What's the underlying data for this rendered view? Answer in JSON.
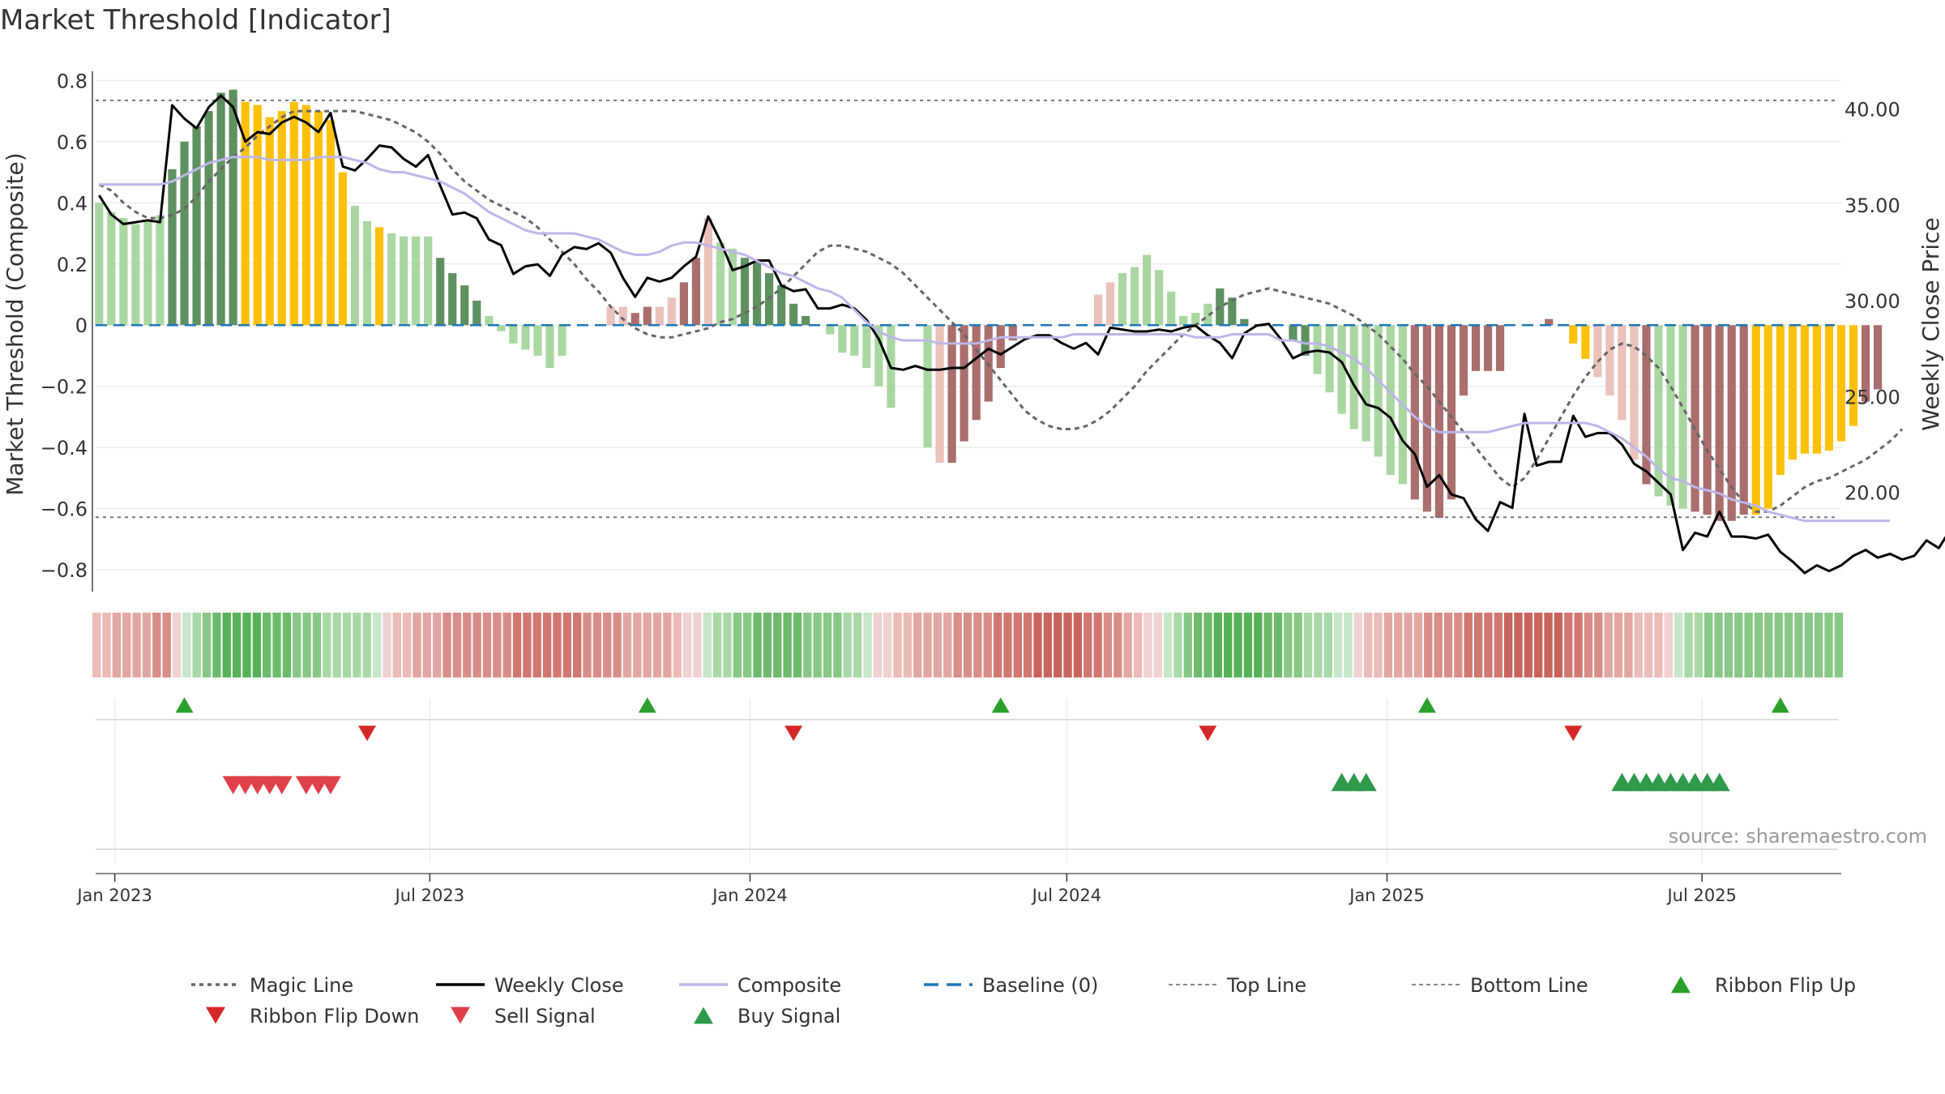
{
  "chart_data": {
    "type": "bar",
    "title": "Market Threshold [Indicator]",
    "ylabel": "Market Threshold (Composite)",
    "y2label": "Weekly Close Price",
    "ylim": [
      -0.85,
      0.83
    ],
    "y2lim": [
      15.17,
      41.97
    ],
    "yticks": [
      0.8,
      0.6,
      0.4,
      0.2,
      0,
      -0.2,
      -0.4,
      -0.6,
      -0.8
    ],
    "ytick_labels": [
      "0.8",
      "0.6",
      "0.4",
      "0.2",
      "0",
      "−0.2",
      "−0.4",
      "−0.6",
      "−0.8"
    ],
    "y2ticks": [
      40,
      35,
      30,
      25,
      20
    ],
    "y2tick_labels": [
      "40.00",
      "35.00",
      "30.00",
      "25.00",
      "20.00"
    ],
    "xlim": [
      "2022-12-21",
      "2025-09-19"
    ],
    "xticks": [
      "2023-01-01",
      "2023-07-01",
      "2024-01-01",
      "2024-07-01",
      "2025-01-01",
      "2025-07-01"
    ],
    "xtick_labels": [
      "Jan 2023",
      "Jul 2023",
      "Jan 2024",
      "Jul 2024",
      "Jan 2025",
      "Jul 2025"
    ],
    "grid": true,
    "start_date": "2022-12-23",
    "top_line": 0.735,
    "bottom_line": -0.628,
    "baseline": 0,
    "series": [
      {
        "name": "Magic Line",
        "type": "line",
        "values": [
          0.46,
          0.44,
          0.4,
          0.37,
          0.35,
          0.35,
          0.36,
          0.38,
          0.42,
          0.47,
          0.51,
          0.55,
          0.58,
          0.62,
          0.65,
          0.68,
          0.7,
          0.7,
          0.7,
          0.7,
          0.7,
          0.7,
          0.69,
          0.68,
          0.67,
          0.65,
          0.63,
          0.6,
          0.56,
          0.51,
          0.47,
          0.44,
          0.41,
          0.39,
          0.37,
          0.35,
          0.32,
          0.28,
          0.24,
          0.2,
          0.15,
          0.11,
          0.06,
          0.02,
          -0.01,
          -0.03,
          -0.04,
          -0.04,
          -0.03,
          -0.02,
          -0.01,
          0.01,
          0.02,
          0.04,
          0.06,
          0.09,
          0.12,
          0.16,
          0.2,
          0.24,
          0.26,
          0.26,
          0.25,
          0.24,
          0.22,
          0.2,
          0.17,
          0.13,
          0.09,
          0.05,
          0.01,
          -0.03,
          -0.08,
          -0.13,
          -0.18,
          -0.23,
          -0.28,
          -0.31,
          -0.33,
          -0.34,
          -0.34,
          -0.33,
          -0.31,
          -0.28,
          -0.24,
          -0.2,
          -0.15,
          -0.11,
          -0.07,
          -0.03,
          0.0,
          0.03,
          0.06,
          0.08,
          0.1,
          0.11,
          0.12,
          0.11,
          0.1,
          0.09,
          0.08,
          0.07,
          0.05,
          0.03,
          0.0,
          -0.03,
          -0.07,
          -0.11,
          -0.16,
          -0.2,
          -0.25,
          -0.3,
          -0.35,
          -0.4,
          -0.45,
          -0.5,
          -0.53,
          -0.5,
          -0.44,
          -0.37,
          -0.3,
          -0.23,
          -0.17,
          -0.12,
          -0.08,
          -0.06,
          -0.07,
          -0.1,
          -0.14,
          -0.2,
          -0.27,
          -0.34,
          -0.41,
          -0.47,
          -0.53,
          -0.58,
          -0.61,
          -0.61,
          -0.59,
          -0.56,
          -0.53,
          -0.51,
          -0.5,
          -0.48,
          -0.46,
          -0.44,
          -0.41,
          -0.38,
          -0.34
        ]
      },
      {
        "name": "Weekly Close",
        "type": "line",
        "axis": "y2",
        "values": [
          35.5,
          34.5,
          34.0,
          34.1,
          34.2,
          34.1,
          40.2,
          39.5,
          39.0,
          40.1,
          40.7,
          40.1,
          38.3,
          38.8,
          38.7,
          39.3,
          39.6,
          39.3,
          38.8,
          39.8,
          37.0,
          36.8,
          37.4,
          38.1,
          38.0,
          37.4,
          37.0,
          37.6,
          36.0,
          34.5,
          34.6,
          34.3,
          33.2,
          32.9,
          31.4,
          31.8,
          31.9,
          31.3,
          32.4,
          32.8,
          32.7,
          33.0,
          32.5,
          31.2,
          30.2,
          31.2,
          31.0,
          31.2,
          31.8,
          32.3,
          34.4,
          33.1,
          31.6,
          31.8,
          32.1,
          32.1,
          30.8,
          30.5,
          30.6,
          29.6,
          29.6,
          29.8,
          29.6,
          29.0,
          28.0,
          26.5,
          26.4,
          26.6,
          26.4,
          26.4,
          26.5,
          26.5,
          27.0,
          27.5,
          27.2,
          27.6,
          28.0,
          28.2,
          28.2,
          27.8,
          27.5,
          27.8,
          27.2,
          28.6,
          28.5,
          28.4,
          28.4,
          28.5,
          28.4,
          28.6,
          28.7,
          28.2,
          27.8,
          27.0,
          28.3,
          28.7,
          28.8,
          28.0,
          27.0,
          27.3,
          27.4,
          27.3,
          26.8,
          25.6,
          24.6,
          24.4,
          23.9,
          22.7,
          22.0,
          20.3,
          20.9,
          19.9,
          19.7,
          18.6,
          18.0,
          19.5,
          19.2,
          24.1,
          21.4,
          21.6,
          21.6,
          24.0,
          22.9,
          23.1,
          23.1,
          22.5,
          21.5,
          21.1,
          20.5,
          19.9,
          17.0,
          17.9,
          17.7,
          19.0,
          17.7,
          17.7,
          17.6,
          17.8,
          16.9,
          16.4,
          15.8,
          16.2,
          15.9,
          16.2,
          16.7,
          17.0,
          16.6,
          16.8,
          16.5,
          16.7,
          17.5,
          17.1,
          18.1,
          17.6
        ]
      },
      {
        "name": "Composite",
        "type": "line",
        "values": [
          0.46,
          0.46,
          0.46,
          0.46,
          0.46,
          0.46,
          0.47,
          0.49,
          0.51,
          0.53,
          0.54,
          0.55,
          0.55,
          0.55,
          0.54,
          0.54,
          0.54,
          0.54,
          0.55,
          0.55,
          0.55,
          0.54,
          0.53,
          0.51,
          0.5,
          0.5,
          0.49,
          0.48,
          0.47,
          0.45,
          0.43,
          0.4,
          0.37,
          0.35,
          0.33,
          0.31,
          0.3,
          0.3,
          0.3,
          0.3,
          0.29,
          0.28,
          0.26,
          0.24,
          0.23,
          0.23,
          0.24,
          0.26,
          0.27,
          0.27,
          0.26,
          0.25,
          0.24,
          0.23,
          0.21,
          0.19,
          0.17,
          0.16,
          0.14,
          0.12,
          0.11,
          0.09,
          0.05,
          0.01,
          -0.02,
          -0.04,
          -0.05,
          -0.05,
          -0.05,
          -0.06,
          -0.06,
          -0.06,
          -0.06,
          -0.05,
          -0.04,
          -0.04,
          -0.04,
          -0.04,
          -0.04,
          -0.04,
          -0.03,
          -0.03,
          -0.03,
          -0.03,
          -0.03,
          -0.03,
          -0.03,
          -0.03,
          -0.03,
          -0.03,
          -0.04,
          -0.04,
          -0.04,
          -0.03,
          -0.03,
          -0.03,
          -0.03,
          -0.05,
          -0.05,
          -0.06,
          -0.06,
          -0.07,
          -0.09,
          -0.11,
          -0.14,
          -0.18,
          -0.22,
          -0.26,
          -0.3,
          -0.33,
          -0.35,
          -0.35,
          -0.35,
          -0.35,
          -0.35,
          -0.34,
          -0.33,
          -0.32,
          -0.32,
          -0.32,
          -0.32,
          -0.32,
          -0.32,
          -0.33,
          -0.35,
          -0.37,
          -0.4,
          -0.43,
          -0.47,
          -0.5,
          -0.51,
          -0.53,
          -0.54,
          -0.55,
          -0.57,
          -0.58,
          -0.59,
          -0.61,
          -0.62,
          -0.63,
          -0.64,
          -0.64,
          -0.64,
          -0.64,
          -0.64,
          -0.64,
          -0.64,
          -0.64
        ]
      },
      {
        "name": "Threshold Bars",
        "type": "bar",
        "values": [
          0.4,
          0.37,
          0.35,
          0.33,
          0.34,
          0.36,
          0.51,
          0.6,
          0.65,
          0.7,
          0.76,
          0.77,
          0.73,
          0.72,
          0.68,
          0.7,
          0.73,
          0.72,
          0.7,
          0.67,
          0.5,
          0.39,
          0.34,
          0.32,
          0.3,
          0.29,
          0.29,
          0.29,
          0.22,
          0.17,
          0.13,
          0.08,
          0.03,
          -0.02,
          -0.06,
          -0.08,
          -0.1,
          -0.14,
          -0.1,
          -0.04,
          -0.02,
          0.0,
          0.06,
          0.06,
          0.04,
          0.06,
          0.06,
          0.09,
          0.14,
          0.22,
          0.35,
          0.27,
          0.25,
          0.22,
          0.21,
          0.17,
          0.13,
          0.07,
          0.03,
          0.0,
          -0.03,
          -0.09,
          -0.1,
          -0.14,
          -0.2,
          -0.27,
          -0.31,
          -0.38,
          -0.4,
          -0.45,
          -0.45,
          -0.38,
          -0.31,
          -0.25,
          -0.14,
          -0.05,
          0.0,
          0.0,
          0.0,
          0.0,
          0.0,
          0.0,
          0.1,
          0.14,
          0.17,
          0.19,
          0.23,
          0.18,
          0.11,
          0.03,
          0.04,
          0.07,
          0.12,
          0.09,
          0.02,
          0.0,
          0.0,
          0.0,
          -0.05,
          -0.1,
          -0.16,
          -0.22,
          -0.29,
          -0.34,
          -0.38,
          -0.43,
          -0.49,
          -0.52,
          -0.57,
          -0.61,
          -0.63,
          -0.57,
          -0.23,
          -0.15,
          -0.15,
          -0.15,
          0.0,
          0.0,
          0.0,
          0.02,
          0.0,
          -0.06,
          -0.11,
          -0.17,
          -0.23,
          -0.31,
          -0.44,
          -0.52,
          -0.56,
          -0.59,
          -0.6,
          -0.61,
          -0.62,
          -0.64,
          -0.64,
          -0.62,
          -0.62,
          -0.6,
          -0.49,
          -0.44,
          -0.42,
          -0.42,
          -0.41,
          -0.38,
          -0.33,
          -0.25,
          -0.21
        ]
      }
    ],
    "bar_colors": {
      "1": "#aad7a1",
      "2": "#5e9160",
      "3": "#fec10b",
      "4": "#ebc1bc",
      "5": "#a96e6d",
      "6": "#9e6a69"
    },
    "bar_color_codes": "111111222222333333333113111122221111111001445544554112222221111111001455555544444444111111112222122211111111555555555555333444451115555533333333355554444445",
    "ribbon_colors": {
      "r1": "#efd2d1",
      "r2": "#ebbbb8",
      "r3": "#e2a7a3",
      "r4": "#d98d88",
      "r5": "#d17770",
      "r6": "#c9645d",
      "g1": "#c8e6c9",
      "g2": "#a9d8a7",
      "g3": "#88c886",
      "g4": "#6cbb6b",
      "g5": "#56b258"
    },
    "ribbon_codes": [
      "r2",
      "r2",
      "r3",
      "r3",
      "r3",
      "r3",
      "r4",
      "r4",
      "r1",
      "g1",
      "g2",
      "g3",
      "g4",
      "g5",
      "g5",
      "g5",
      "g5",
      "g4",
      "g4",
      "g4",
      "g3",
      "g3",
      "g3",
      "g2",
      "g2",
      "g2",
      "g2",
      "g2",
      "g1",
      "r1",
      "r2",
      "r2",
      "r3",
      "r3",
      "r3",
      "r4",
      "r4",
      "r4",
      "r4",
      "r4",
      "r4",
      "r4",
      "r5",
      "r5",
      "r5",
      "r5",
      "r5",
      "r5",
      "r5",
      "r4",
      "r4",
      "r4",
      "r4",
      "r3",
      "r3",
      "r3",
      "r3",
      "r3",
      "r2",
      "r1",
      "r1",
      "g1",
      "g2",
      "g2",
      "g3",
      "g3",
      "g4",
      "g4",
      "g4",
      "g4",
      "g4",
      "g3",
      "g3",
      "g3",
      "g3",
      "g2",
      "g2",
      "g1",
      "r1",
      "r1",
      "r2",
      "r2",
      "r3",
      "r3",
      "r3",
      "r3",
      "r4",
      "r4",
      "r4",
      "r4",
      "r5",
      "r5",
      "r5",
      "r5",
      "r6",
      "r6",
      "r6",
      "r6",
      "r6",
      "r5",
      "r5",
      "r4",
      "r4",
      "r3",
      "r2",
      "r1",
      "r1",
      "g1",
      "g2",
      "g3",
      "g4",
      "g4",
      "g5",
      "g5",
      "g5",
      "g5",
      "g5",
      "g4",
      "g4",
      "g3",
      "g3",
      "g2",
      "g2",
      "g2",
      "g1",
      "g1",
      "r1",
      "r2",
      "r2",
      "r3",
      "r3",
      "r3",
      "r3",
      "r4",
      "r4",
      "r4",
      "r4",
      "r5",
      "r5",
      "r5",
      "r5",
      "r6",
      "r6",
      "r6",
      "r6",
      "r6",
      "r6",
      "r5",
      "r5",
      "r4",
      "r4",
      "r3",
      "r3",
      "r3",
      "r2",
      "r2",
      "r2",
      "r1",
      "g1",
      "g2",
      "g2",
      "g3",
      "g3",
      "g3",
      "g3",
      "g3",
      "g3",
      "g3",
      "g3",
      "g3",
      "g3",
      "g3",
      "g3",
      "g3",
      "g3"
    ],
    "ribbon_flip_up": [
      "2023-02-10",
      "2023-11-03",
      "2024-05-24",
      "2025-01-24",
      "2025-08-15"
    ],
    "ribbon_flip_down": [
      "2023-05-26",
      "2024-01-26",
      "2024-09-20",
      "2025-04-18"
    ],
    "sell_signal": [
      "2023-03-10",
      "2023-03-17",
      "2023-03-24",
      "2023-03-31",
      "2023-04-07",
      "2023-04-21",
      "2023-04-28",
      "2023-05-05"
    ],
    "buy_signal": [
      "2024-12-06",
      "2024-12-13",
      "2024-12-20",
      "2025-05-16",
      "2025-05-23",
      "2025-05-30",
      "2025-06-06",
      "2025-06-13",
      "2025-06-20",
      "2025-06-27",
      "2025-07-04",
      "2025-07-11"
    ],
    "annotation": "source: sharemaestro.com",
    "legend": {
      "placement": "bottom",
      "entries": [
        {
          "label": "Magic Line",
          "kind": "dotted",
          "color": "#666666"
        },
        {
          "label": "Weekly Close",
          "kind": "solid",
          "color": "#000000"
        },
        {
          "label": "Composite",
          "kind": "solid",
          "color": "#bdb6e8"
        },
        {
          "label": "Baseline (0)",
          "kind": "dashed",
          "color": "#1f77b4"
        },
        {
          "label": "Top Line",
          "kind": "dotted-thin",
          "color": "#888888"
        },
        {
          "label": "Bottom Line",
          "kind": "dotted-thin",
          "color": "#888888"
        },
        {
          "label": "Ribbon Flip Up",
          "kind": "tri-up",
          "color": "#2ca02c"
        },
        {
          "label": "Ribbon Flip Down",
          "kind": "tri-down",
          "color": "#d62728"
        },
        {
          "label": "Sell Signal",
          "kind": "tri-down",
          "color": "#e0404a"
        },
        {
          "label": "Buy Signal",
          "kind": "tri-up",
          "color": "#2e9a4a"
        }
      ]
    }
  }
}
